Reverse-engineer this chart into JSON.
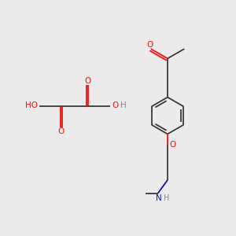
{
  "bg_color": "#ebebeb",
  "bond_color": "#3a3a3a",
  "o_color": "#ee1111",
  "n_color": "#1111bb",
  "h_color": "#888888",
  "bond_width": 1.3,
  "figsize": [
    3.0,
    3.0
  ],
  "dpi": 100,
  "xlim": [
    0,
    10
  ],
  "ylim": [
    0,
    10
  ]
}
